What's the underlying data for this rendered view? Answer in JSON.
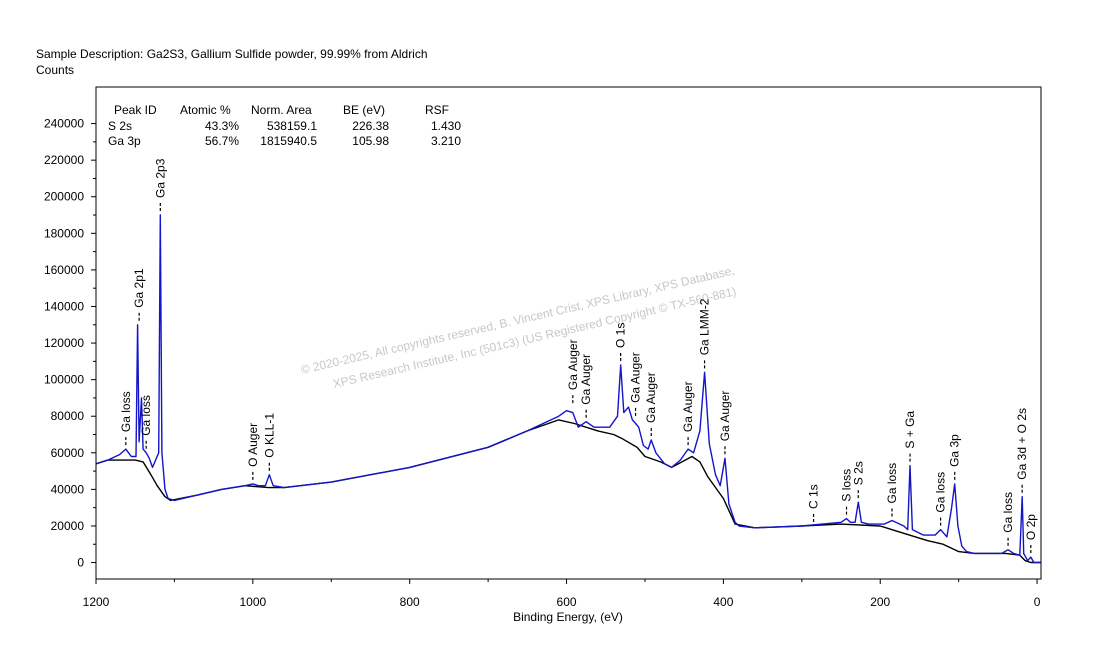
{
  "header": {
    "sample_description": "Sample Description:  Ga2S3, Gallium Sulfide powder, 99.99% from Aldrich",
    "y_unit": "Counts"
  },
  "colors": {
    "spectrum": "#1414c8",
    "background": "#000000",
    "frame": "#000000",
    "watermark": "#c8c8c8"
  },
  "quant_table": {
    "headers": [
      "Peak ID",
      "Atomic %",
      "Norm. Area",
      "BE (eV)",
      "RSF"
    ],
    "rows": [
      [
        "S 2s",
        "43.3%",
        "538159.1",
        "226.38",
        "1.430"
      ],
      [
        "Ga 3p",
        "56.7%",
        "1815940.5",
        "105.98",
        "3.210"
      ]
    ]
  },
  "watermark": {
    "line1": "©  2020-2025,  All copyrights reserved,    B. Vincent Crist,  XPS Library, XPS Database,",
    "line2": "XPS Research Institute, Inc (501c3)   (US Registered Copyright © TX-560-881)"
  },
  "chart_data": {
    "type": "line",
    "xlabel": "Binding Energy, (eV)",
    "ylabel": "Counts",
    "xlim": [
      1200,
      -5
    ],
    "ylim": [
      -9000,
      260000
    ],
    "x_reversed": true,
    "x_ticks": [
      1200,
      1000,
      800,
      600,
      400,
      200,
      0
    ],
    "y_ticks": [
      0,
      20000,
      40000,
      60000,
      80000,
      100000,
      120000,
      140000,
      160000,
      180000,
      200000,
      220000,
      240000
    ],
    "grid": false,
    "legend": "none",
    "series": [
      {
        "role": "spectrum",
        "points": [
          [
            1200,
            54000
          ],
          [
            1185,
            56000
          ],
          [
            1170,
            59000
          ],
          [
            1162,
            62000
          ],
          [
            1155,
            58000
          ],
          [
            1149,
            58000
          ],
          [
            1147,
            130000
          ],
          [
            1145,
            66000
          ],
          [
            1142,
            90000
          ],
          [
            1140,
            62000
          ],
          [
            1136,
            60000
          ],
          [
            1132,
            57000
          ],
          [
            1128,
            52000
          ],
          [
            1124,
            56000
          ],
          [
            1120,
            60000
          ],
          [
            1118,
            190000
          ],
          [
            1116,
            60000
          ],
          [
            1112,
            40000
          ],
          [
            1108,
            35000
          ],
          [
            1100,
            34000
          ],
          [
            1070,
            37000
          ],
          [
            1040,
            40000
          ],
          [
            1010,
            42000
          ],
          [
            1000,
            43000
          ],
          [
            993,
            42000
          ],
          [
            984,
            42000
          ],
          [
            979,
            48000
          ],
          [
            974,
            42000
          ],
          [
            960,
            41000
          ],
          [
            900,
            44000
          ],
          [
            800,
            52000
          ],
          [
            700,
            63000
          ],
          [
            650,
            72000
          ],
          [
            610,
            80000
          ],
          [
            600,
            83000
          ],
          [
            592,
            82000
          ],
          [
            585,
            74000
          ],
          [
            575,
            77000
          ],
          [
            565,
            74000
          ],
          [
            545,
            74000
          ],
          [
            535,
            80000
          ],
          [
            531,
            108000
          ],
          [
            527,
            82000
          ],
          [
            521,
            85000
          ],
          [
            516,
            78000
          ],
          [
            512,
            76000
          ],
          [
            508,
            74000
          ],
          [
            502,
            64000
          ],
          [
            496,
            62000
          ],
          [
            492,
            67000
          ],
          [
            486,
            60000
          ],
          [
            475,
            54000
          ],
          [
            466,
            52000
          ],
          [
            455,
            56000
          ],
          [
            445,
            62000
          ],
          [
            438,
            60000
          ],
          [
            430,
            72000
          ],
          [
            424,
            104000
          ],
          [
            418,
            65000
          ],
          [
            410,
            48000
          ],
          [
            404,
            42000
          ],
          [
            398,
            57000
          ],
          [
            393,
            32000
          ],
          [
            385,
            22000
          ],
          [
            380,
            20000
          ],
          [
            360,
            19000
          ],
          [
            300,
            20000
          ],
          [
            250,
            22000
          ],
          [
            243,
            24000
          ],
          [
            238,
            22000
          ],
          [
            232,
            22000
          ],
          [
            228,
            33000
          ],
          [
            224,
            22000
          ],
          [
            215,
            21000
          ],
          [
            195,
            21000
          ],
          [
            185,
            23000
          ],
          [
            175,
            21000
          ],
          [
            170,
            20000
          ],
          [
            165,
            18000
          ],
          [
            162,
            53000
          ],
          [
            159,
            18000
          ],
          [
            145,
            15000
          ],
          [
            130,
            15000
          ],
          [
            123,
            18000
          ],
          [
            115,
            14000
          ],
          [
            109,
            30000
          ],
          [
            105,
            43000
          ],
          [
            101,
            20000
          ],
          [
            96,
            9000
          ],
          [
            90,
            6000
          ],
          [
            80,
            5000
          ],
          [
            60,
            5000
          ],
          [
            45,
            5000
          ],
          [
            37,
            7000
          ],
          [
            30,
            5000
          ],
          [
            22,
            4000
          ],
          [
            19,
            36000
          ],
          [
            17,
            5000
          ],
          [
            12,
            1000
          ],
          [
            8,
            3000
          ],
          [
            4,
            0
          ],
          [
            -5,
            0
          ]
        ]
      },
      {
        "role": "background",
        "points": [
          [
            1200,
            54000
          ],
          [
            1185,
            56000
          ],
          [
            1170,
            56000
          ],
          [
            1150,
            56000
          ],
          [
            1140,
            55000
          ],
          [
            1130,
            48000
          ],
          [
            1122,
            42000
          ],
          [
            1112,
            36000
          ],
          [
            1105,
            34000
          ],
          [
            1070,
            37000
          ],
          [
            1040,
            40000
          ],
          [
            1010,
            42000
          ],
          [
            980,
            41000
          ],
          [
            960,
            41000
          ],
          [
            900,
            44000
          ],
          [
            800,
            52000
          ],
          [
            700,
            63000
          ],
          [
            650,
            72000
          ],
          [
            610,
            78000
          ],
          [
            590,
            76000
          ],
          [
            560,
            72000
          ],
          [
            540,
            70000
          ],
          [
            530,
            68000
          ],
          [
            510,
            63000
          ],
          [
            500,
            58000
          ],
          [
            480,
            55000
          ],
          [
            466,
            52000
          ],
          [
            440,
            58000
          ],
          [
            430,
            55000
          ],
          [
            420,
            47000
          ],
          [
            400,
            35000
          ],
          [
            385,
            21000
          ],
          [
            360,
            19000
          ],
          [
            300,
            20000
          ],
          [
            250,
            21000
          ],
          [
            200,
            20000
          ],
          [
            170,
            16000
          ],
          [
            140,
            12000
          ],
          [
            120,
            10000
          ],
          [
            110,
            8000
          ],
          [
            100,
            6000
          ],
          [
            80,
            5000
          ],
          [
            40,
            5000
          ],
          [
            22,
            4000
          ],
          [
            15,
            1000
          ],
          [
            8,
            0
          ],
          [
            -5,
            0
          ]
        ]
      }
    ],
    "annotations": [
      {
        "label": "Ga loss",
        "x": 1162,
        "y": 62000
      },
      {
        "label": "Ga 2p1",
        "x": 1145,
        "y": 130000
      },
      {
        "label": "Ga loss",
        "x": 1136,
        "y": 60000
      },
      {
        "label": "Ga 2p3",
        "x": 1118,
        "y": 190000
      },
      {
        "label": "O Auger",
        "x": 1000,
        "y": 43000
      },
      {
        "label": "O KLL-1",
        "x": 979,
        "y": 48000
      },
      {
        "label": "Ga Auger",
        "x": 592,
        "y": 85000
      },
      {
        "label": "Ga Auger",
        "x": 575,
        "y": 77000
      },
      {
        "label": "O 1s",
        "x": 531,
        "y": 108000
      },
      {
        "label": "Ga Auger",
        "x": 512,
        "y": 78000
      },
      {
        "label": "Ga Auger",
        "x": 492,
        "y": 67000
      },
      {
        "label": "Ga Auger",
        "x": 445,
        "y": 62000
      },
      {
        "label": "Ga LMM-2",
        "x": 424,
        "y": 104000
      },
      {
        "label": "Ga Auger",
        "x": 398,
        "y": 57000
      },
      {
        "label": "C 1s",
        "x": 285,
        "y": 20000
      },
      {
        "label": "S loss",
        "x": 243,
        "y": 24000
      },
      {
        "label": "S 2s",
        "x": 228,
        "y": 33000
      },
      {
        "label": "Ga loss",
        "x": 185,
        "y": 23000
      },
      {
        "label": "S + Ga",
        "x": 162,
        "y": 53000
      },
      {
        "label": "Ga loss",
        "x": 123,
        "y": 18000
      },
      {
        "label": "Ga 3p",
        "x": 105,
        "y": 43000
      },
      {
        "label": "Ga loss",
        "x": 37,
        "y": 7000
      },
      {
        "label": "Ga 3d + O 2s",
        "x": 19,
        "y": 36000
      },
      {
        "label": "O 2p",
        "x": 8,
        "y": 3000
      }
    ]
  }
}
